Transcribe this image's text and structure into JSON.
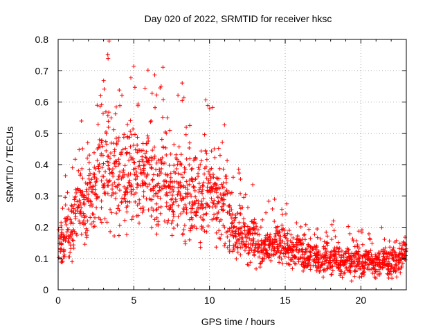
{
  "chart_data": {
    "type": "scatter",
    "title": "Day 020 of 2022, SRMTID for receiver hksc",
    "xlabel": "GPS time / hours",
    "ylabel": "SRMTID / TECUs",
    "xlim": [
      0,
      23
    ],
    "ylim": [
      0,
      0.8
    ],
    "xticks": [
      0,
      5,
      10,
      15,
      20
    ],
    "xtick_labels": [
      "0",
      "5",
      "10",
      "15",
      "20"
    ],
    "yticks": [
      0,
      0.1,
      0.2,
      0.3,
      0.4,
      0.5,
      0.6,
      0.7,
      0.8
    ],
    "ytick_labels": [
      "0",
      "0.1",
      "0.2",
      "0.3",
      "0.4",
      "0.5",
      "0.6",
      "0.7",
      "0.8"
    ],
    "grid": true,
    "marker": "+",
    "series_color": "#ff0000",
    "series": [
      {
        "name": "SRMTID",
        "x": [
          0.0,
          0.3,
          0.6,
          0.9,
          1.2,
          1.5,
          1.8,
          2.1,
          2.4,
          2.7,
          3.0,
          3.3,
          3.6,
          3.9,
          4.2,
          4.5,
          4.8,
          5.1,
          5.4,
          5.7,
          6.0,
          6.3,
          6.6,
          6.9,
          7.2,
          7.5,
          7.8,
          8.1,
          8.4,
          8.7,
          9.0,
          9.3,
          9.6,
          9.9,
          10.2,
          10.5,
          10.8,
          11.1,
          11.4,
          11.7,
          12.0,
          12.3,
          12.6,
          12.9,
          13.2,
          13.5,
          13.8,
          14.1,
          14.4,
          14.7,
          15.0,
          15.3,
          15.6,
          15.9,
          16.2,
          16.5,
          16.8,
          17.1,
          17.4,
          17.7,
          18.0,
          18.3,
          18.6,
          18.9,
          19.2,
          19.5,
          19.8,
          20.1,
          20.4,
          20.7,
          21.0,
          21.3,
          21.6,
          21.9,
          22.2,
          22.5,
          22.8
        ],
        "y": [
          0.17,
          0.14,
          0.22,
          0.2,
          0.26,
          0.3,
          0.24,
          0.33,
          0.3,
          0.36,
          0.38,
          0.42,
          0.4,
          0.37,
          0.33,
          0.36,
          0.4,
          0.38,
          0.35,
          0.37,
          0.4,
          0.36,
          0.32,
          0.38,
          0.34,
          0.3,
          0.33,
          0.35,
          0.3,
          0.28,
          0.31,
          0.27,
          0.3,
          0.33,
          0.3,
          0.27,
          0.29,
          0.25,
          0.22,
          0.18,
          0.2,
          0.17,
          0.15,
          0.18,
          0.14,
          0.12,
          0.15,
          0.13,
          0.16,
          0.14,
          0.15,
          0.13,
          0.12,
          0.14,
          0.11,
          0.1,
          0.12,
          0.1,
          0.09,
          0.11,
          0.1,
          0.12,
          0.09,
          0.08,
          0.1,
          0.09,
          0.11,
          0.08,
          0.1,
          0.09,
          0.07,
          0.09,
          0.1,
          0.08,
          0.09,
          0.1,
          0.11
        ]
      }
    ]
  }
}
